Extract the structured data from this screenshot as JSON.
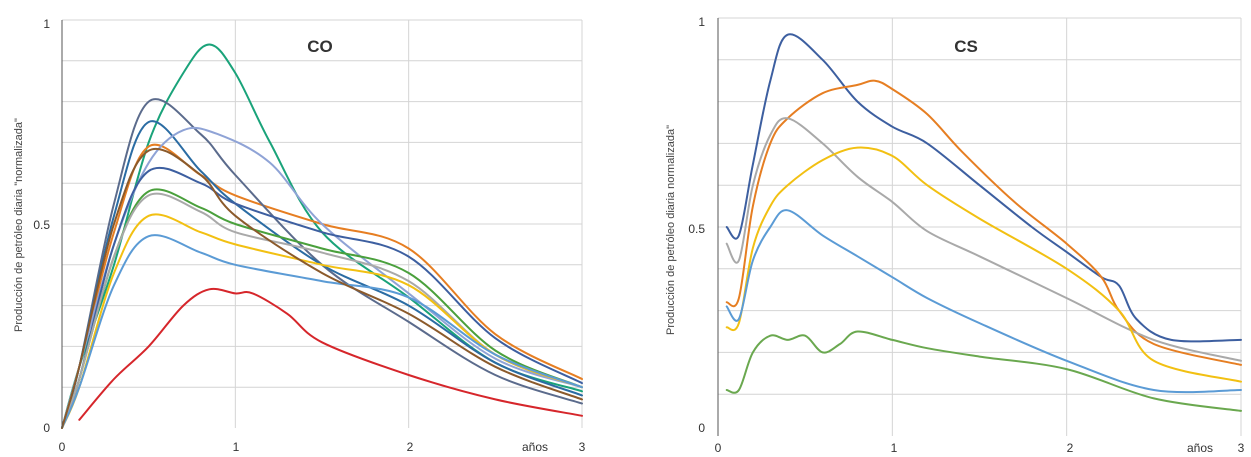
{
  "chart_data": [
    {
      "type": "line",
      "title": "CO",
      "ylabel": "Producción de petróleo diaria \"normalizada\"",
      "xlabel": "años",
      "xlim": [
        0,
        3
      ],
      "ylim": [
        0,
        1
      ],
      "xticks": [
        "0",
        "1",
        "2",
        "3"
      ],
      "yticks": [
        "0",
        "0.5",
        "1"
      ],
      "grid": true,
      "series": [
        {
          "color": "#1aa37a",
          "x": [
            0,
            0.1,
            0.3,
            0.5,
            0.7,
            0.85,
            1.0,
            1.2,
            1.5,
            2.0,
            2.5,
            3.0
          ],
          "y": [
            0,
            0.15,
            0.4,
            0.7,
            0.87,
            0.94,
            0.87,
            0.7,
            0.48,
            0.32,
            0.16,
            0.09
          ]
        },
        {
          "color": "#e67e22",
          "x": [
            0,
            0.1,
            0.3,
            0.5,
            0.8,
            1.0,
            1.5,
            2.0,
            2.5,
            3.0
          ],
          "y": [
            0,
            0.15,
            0.48,
            0.69,
            0.62,
            0.57,
            0.5,
            0.44,
            0.23,
            0.12
          ]
        },
        {
          "color": "#5b6b8c",
          "x": [
            0,
            0.1,
            0.3,
            0.5,
            0.8,
            1.0,
            1.5,
            2.0,
            2.5,
            3.0
          ],
          "y": [
            0,
            0.15,
            0.55,
            0.8,
            0.72,
            0.62,
            0.4,
            0.26,
            0.13,
            0.06
          ]
        },
        {
          "color": "#2b6ca3",
          "x": [
            0,
            0.1,
            0.3,
            0.5,
            0.8,
            1.0,
            1.5,
            2.0,
            2.5,
            3.0
          ],
          "y": [
            0,
            0.15,
            0.52,
            0.75,
            0.63,
            0.55,
            0.4,
            0.3,
            0.16,
            0.08
          ]
        },
        {
          "color": "#8fa3d6",
          "x": [
            0,
            0.1,
            0.3,
            0.5,
            0.7,
            0.9,
            1.2,
            1.5,
            2.0,
            2.5,
            3.0
          ],
          "y": [
            0,
            0.15,
            0.45,
            0.65,
            0.73,
            0.72,
            0.65,
            0.5,
            0.33,
            0.17,
            0.1
          ]
        },
        {
          "color": "#3d5fa0",
          "x": [
            0,
            0.1,
            0.3,
            0.5,
            0.8,
            1.0,
            1.5,
            2.0,
            2.5,
            3.0
          ],
          "y": [
            0,
            0.12,
            0.45,
            0.63,
            0.6,
            0.55,
            0.48,
            0.42,
            0.22,
            0.11
          ]
        },
        {
          "color": "#4aa03c",
          "x": [
            0,
            0.1,
            0.3,
            0.5,
            0.8,
            1.0,
            1.5,
            2.0,
            2.5,
            3.0
          ],
          "y": [
            0,
            0.12,
            0.42,
            0.58,
            0.54,
            0.5,
            0.44,
            0.38,
            0.19,
            0.1
          ]
        },
        {
          "color": "#a9a9a9",
          "x": [
            0,
            0.1,
            0.3,
            0.5,
            0.8,
            1.0,
            1.5,
            2.0,
            2.5,
            3.0
          ],
          "y": [
            0,
            0.12,
            0.42,
            0.57,
            0.53,
            0.48,
            0.43,
            0.36,
            0.18,
            0.1
          ]
        },
        {
          "color": "#f2c012",
          "x": [
            0,
            0.1,
            0.3,
            0.5,
            0.8,
            1.0,
            1.5,
            2.0,
            2.5,
            3.0
          ],
          "y": [
            0,
            0.1,
            0.38,
            0.52,
            0.48,
            0.45,
            0.4,
            0.35,
            0.18,
            0.1
          ]
        },
        {
          "color": "#5b9bd5",
          "x": [
            0,
            0.1,
            0.3,
            0.5,
            0.8,
            1.0,
            1.5,
            2.0,
            2.5,
            3.0
          ],
          "y": [
            0,
            0.1,
            0.35,
            0.47,
            0.43,
            0.4,
            0.36,
            0.32,
            0.18,
            0.1
          ]
        },
        {
          "color": "#8b5a2b",
          "x": [
            0,
            0.1,
            0.3,
            0.5,
            0.8,
            1.0,
            1.5,
            2.0,
            2.5,
            3.0
          ],
          "y": [
            0,
            0.15,
            0.5,
            0.68,
            0.62,
            0.52,
            0.38,
            0.28,
            0.15,
            0.07
          ]
        },
        {
          "color": "#d6262b",
          "x": [
            0.1,
            0.3,
            0.5,
            0.7,
            0.85,
            1.0,
            1.1,
            1.3,
            1.5,
            2.0,
            2.5,
            3.0
          ],
          "y": [
            0.02,
            0.12,
            0.2,
            0.3,
            0.34,
            0.33,
            0.33,
            0.28,
            0.21,
            0.13,
            0.07,
            0.03
          ]
        }
      ]
    },
    {
      "type": "line",
      "title": "CS",
      "ylabel": "Producción de petróleo diaria normalizada\"",
      "xlabel": "años",
      "xlim": [
        0,
        3
      ],
      "ylim": [
        0,
        1
      ],
      "xticks": [
        "0",
        "1",
        "2",
        "3"
      ],
      "yticks": [
        "0",
        "0.5",
        "1"
      ],
      "grid": true,
      "series": [
        {
          "color": "#3d5fa0",
          "x": [
            0.05,
            0.12,
            0.2,
            0.3,
            0.4,
            0.6,
            0.8,
            1.0,
            1.2,
            1.5,
            1.8,
            2.0,
            2.2,
            2.3,
            2.4,
            2.6,
            3.0
          ],
          "y": [
            0.5,
            0.48,
            0.65,
            0.85,
            0.96,
            0.9,
            0.8,
            0.74,
            0.7,
            0.6,
            0.5,
            0.44,
            0.38,
            0.36,
            0.28,
            0.23,
            0.23
          ]
        },
        {
          "color": "#e67e22",
          "x": [
            0.05,
            0.12,
            0.2,
            0.3,
            0.4,
            0.6,
            0.8,
            0.9,
            1.0,
            1.2,
            1.4,
            1.7,
            2.0,
            2.2,
            2.3,
            2.5,
            3.0
          ],
          "y": [
            0.32,
            0.33,
            0.55,
            0.7,
            0.76,
            0.82,
            0.84,
            0.85,
            0.83,
            0.77,
            0.68,
            0.56,
            0.46,
            0.38,
            0.3,
            0.22,
            0.17
          ]
        },
        {
          "color": "#a9a9a9",
          "x": [
            0.05,
            0.12,
            0.2,
            0.3,
            0.4,
            0.6,
            0.8,
            1.0,
            1.2,
            1.5,
            2.0,
            2.5,
            3.0
          ],
          "y": [
            0.46,
            0.42,
            0.6,
            0.72,
            0.76,
            0.7,
            0.62,
            0.56,
            0.49,
            0.43,
            0.33,
            0.23,
            0.18
          ]
        },
        {
          "color": "#f2c012",
          "x": [
            0.05,
            0.12,
            0.2,
            0.3,
            0.4,
            0.6,
            0.8,
            1.0,
            1.2,
            1.5,
            2.0,
            2.3,
            2.5,
            3.0
          ],
          "y": [
            0.26,
            0.27,
            0.45,
            0.55,
            0.6,
            0.66,
            0.69,
            0.67,
            0.6,
            0.52,
            0.4,
            0.3,
            0.18,
            0.13
          ]
        },
        {
          "color": "#5b9bd5",
          "x": [
            0.05,
            0.12,
            0.2,
            0.3,
            0.4,
            0.6,
            0.8,
            1.0,
            1.2,
            1.5,
            2.0,
            2.5,
            3.0
          ],
          "y": [
            0.31,
            0.28,
            0.42,
            0.5,
            0.54,
            0.48,
            0.43,
            0.38,
            0.33,
            0.27,
            0.18,
            0.11,
            0.11
          ]
        },
        {
          "color": "#6aa84f",
          "x": [
            0.05,
            0.12,
            0.2,
            0.3,
            0.4,
            0.5,
            0.6,
            0.7,
            0.8,
            1.0,
            1.2,
            1.5,
            2.0,
            2.5,
            3.0
          ],
          "y": [
            0.11,
            0.11,
            0.2,
            0.24,
            0.23,
            0.24,
            0.2,
            0.22,
            0.25,
            0.23,
            0.21,
            0.19,
            0.16,
            0.09,
            0.06
          ]
        }
      ]
    }
  ]
}
